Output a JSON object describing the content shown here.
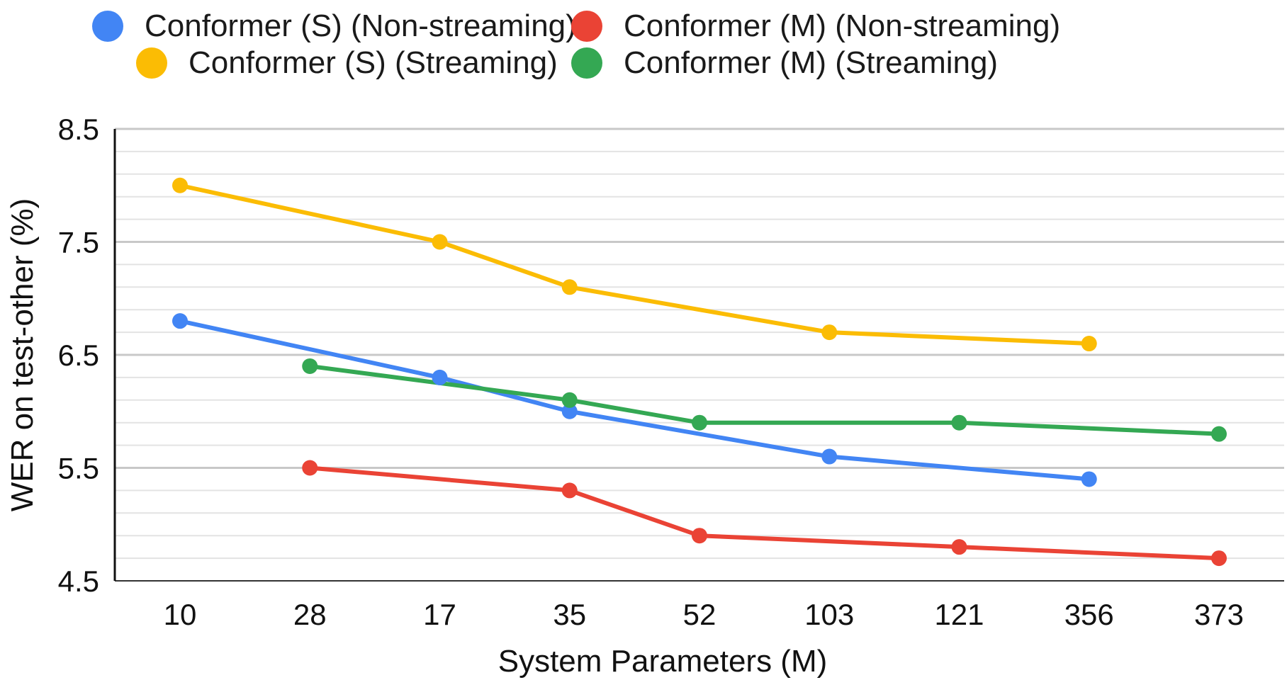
{
  "chart_data": {
    "type": "line",
    "title": "",
    "xlabel": "System Parameters (M)",
    "ylabel": "WER on test-other (%)",
    "categories": [
      "10",
      "28",
      "17",
      "35",
      "52",
      "103",
      "121",
      "356",
      "373"
    ],
    "ylim": [
      4.5,
      8.5
    ],
    "yticks": [
      "4.5",
      "5.5",
      "6.5",
      "7.5",
      "8.5"
    ],
    "grid": true,
    "legend_position": "top",
    "series": [
      {
        "name": "Conformer (S) (Non-streaming)",
        "color": "#4285F4",
        "values": [
          6.8,
          null,
          6.3,
          6.0,
          null,
          5.6,
          null,
          5.4,
          null
        ]
      },
      {
        "name": "Conformer (M) (Non-streaming)",
        "color": "#EA4335",
        "values": [
          null,
          5.5,
          null,
          5.3,
          4.9,
          null,
          4.8,
          null,
          4.7
        ]
      },
      {
        "name": "Conformer (S) (Streaming)",
        "color": "#FBBC04",
        "values": [
          8.0,
          null,
          7.5,
          7.1,
          null,
          6.7,
          null,
          6.6,
          null
        ]
      },
      {
        "name": "Conformer (M) (Streaming)",
        "color": "#34A853",
        "values": [
          null,
          6.4,
          null,
          6.1,
          5.9,
          null,
          5.9,
          null,
          5.8
        ]
      }
    ]
  }
}
